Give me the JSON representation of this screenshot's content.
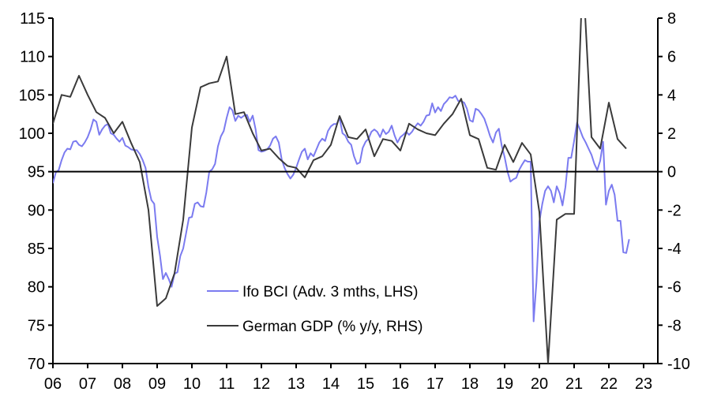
{
  "chart_data": {
    "type": "line",
    "title": "",
    "xlabel": "",
    "ylabel_left": "",
    "ylabel_right": "",
    "x_ticks": [
      "06",
      "07",
      "08",
      "09",
      "10",
      "11",
      "12",
      "13",
      "14",
      "15",
      "16",
      "17",
      "18",
      "19",
      "20",
      "21",
      "22",
      "23"
    ],
    "x_range_years": [
      2006,
      2023.7
    ],
    "y_left": {
      "range": [
        70,
        115
      ],
      "ticks": [
        115,
        110,
        105,
        100,
        95,
        90,
        85,
        80,
        75,
        70
      ]
    },
    "y_right": {
      "range": [
        -10,
        8
      ],
      "ticks": [
        8,
        6,
        4,
        2,
        0,
        -2,
        -4,
        -6,
        -8,
        -10
      ]
    },
    "zero_line_right": 0,
    "legend_position": "center-bottom",
    "series": [
      {
        "name": "Ifo BCI (Adv. 3 mths, LHS)",
        "axis": "left",
        "color": "#7B7BF0",
        "frequency": "monthly",
        "start": 2006.0,
        "values": [
          93.5,
          94.9,
          95.2,
          96.5,
          97.5,
          98.0,
          97.9,
          98.9,
          99.0,
          98.5,
          98.3,
          98.8,
          99.5,
          100.5,
          101.8,
          101.5,
          99.8,
          100.5,
          101.0,
          101.2,
          100.0,
          99.8,
          99.3,
          98.9,
          99.4,
          98.4,
          98.2,
          97.9,
          97.8,
          97.8,
          97.3,
          96.5,
          95.5,
          93.0,
          91.3,
          90.8,
          86.5,
          84.0,
          81.0,
          81.8,
          81.0,
          80.0,
          81.7,
          81.9,
          84.0,
          85.0,
          87.0,
          89.0,
          89.1,
          90.8,
          91.0,
          90.5,
          90.4,
          92.3,
          95.0,
          95.3,
          96.0,
          98.3,
          99.6,
          100.3,
          102.0,
          103.4,
          103.0,
          101.6,
          102.3,
          102.0,
          102.3,
          102.4,
          101.5,
          102.3,
          100.5,
          97.8,
          97.6,
          97.7,
          97.9,
          98.4,
          99.3,
          99.6,
          98.8,
          96.6,
          95.5,
          94.7,
          94.1,
          94.6,
          95.5,
          96.6,
          97.6,
          98.0,
          96.6,
          97.4,
          97.0,
          97.9,
          98.8,
          99.3,
          99.0,
          100.3,
          100.9,
          101.2,
          101.2,
          102.0,
          100.0,
          99.7,
          98.9,
          98.5,
          97.0,
          96.0,
          96.2,
          98.1,
          98.9,
          99.3,
          100.2,
          100.5,
          100.2,
          99.5,
          100.5,
          99.9,
          100.2,
          101.0,
          99.7,
          98.8,
          99.5,
          99.8,
          100.2,
          99.8,
          100.2,
          100.8,
          101.3,
          101.0,
          101.5,
          102.3,
          102.4,
          103.9,
          102.7,
          103.4,
          102.9,
          103.8,
          104.2,
          104.7,
          104.6,
          104.9,
          104.2,
          104.2,
          104.0,
          103.2,
          101.7,
          101.5,
          103.2,
          103.0,
          102.5,
          101.9,
          100.8,
          99.6,
          98.8,
          100.1,
          100.6,
          98.4,
          96.9,
          95.0,
          93.7,
          94.0,
          94.2,
          95.2,
          95.9,
          96.5,
          96.3,
          96.3,
          75.5,
          80.6,
          88.5,
          90.8,
          92.5,
          93.1,
          92.5,
          91.0,
          93.1,
          92.2,
          90.6,
          93.0,
          96.8,
          96.8,
          99.0,
          101.4,
          100.5,
          99.5,
          98.8,
          98.0,
          97.2,
          96.0,
          95.2,
          96.4,
          98.9,
          90.7,
          92.5,
          93.3,
          92.0,
          88.6,
          88.6,
          84.5,
          84.4,
          86.2
        ]
      },
      {
        "name": "German GDP (% y/y, RHS)",
        "axis": "right",
        "color": "#3A3A3A",
        "frequency": "quarterly",
        "start": 2006.0,
        "values": [
          2.5,
          4.0,
          3.9,
          5.0,
          4.0,
          3.1,
          2.8,
          2.0,
          2.6,
          1.5,
          0.5,
          -2.0,
          -7.0,
          -6.6,
          -5.3,
          -2.5,
          2.3,
          4.4,
          4.6,
          4.7,
          6.0,
          3.0,
          3.1,
          2.0,
          1.1,
          1.2,
          0.7,
          0.3,
          0.2,
          -0.3,
          0.6,
          0.8,
          1.4,
          2.9,
          1.8,
          1.7,
          2.2,
          0.8,
          1.7,
          1.6,
          1.1,
          2.5,
          2.2,
          2.0,
          1.9,
          2.5,
          3.0,
          3.8,
          1.9,
          1.7,
          0.2,
          0.1,
          1.4,
          0.5,
          1.5,
          0.9,
          -2.1,
          -10.0,
          -2.5,
          -2.2,
          -2.2,
          10.5,
          1.8,
          1.2,
          3.6,
          1.7,
          1.2
        ]
      }
    ]
  },
  "legend": {
    "items": [
      {
        "label": "Ifo BCI (Adv. 3 mths, LHS)",
        "color": "#7B7BF0"
      },
      {
        "label": "German GDP (% y/y, RHS)",
        "color": "#3A3A3A"
      }
    ]
  }
}
